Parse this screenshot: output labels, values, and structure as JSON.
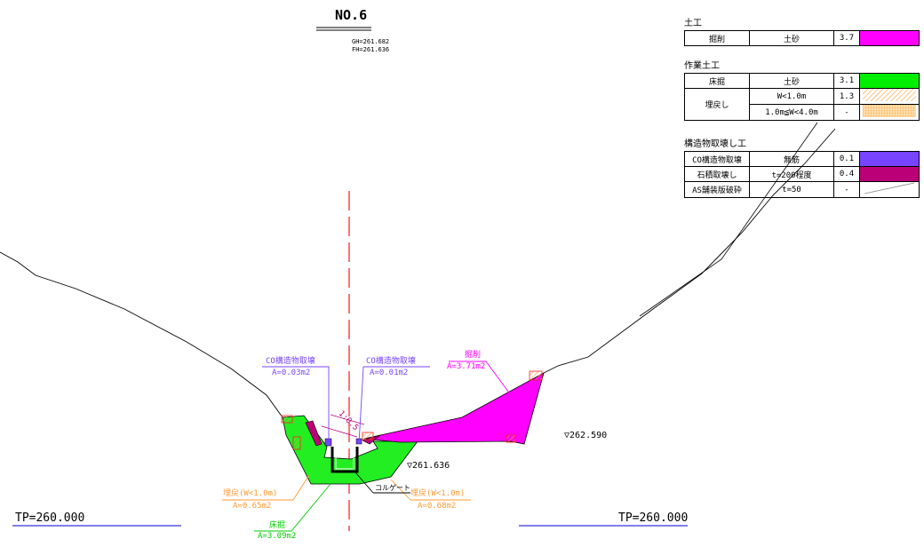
{
  "drawing": {
    "section_no": "NO.6",
    "gh": "GH=261.682",
    "fh": "FH=261.636"
  },
  "legend": {
    "earthwork": {
      "title": "土工",
      "rows": [
        {
          "work": "掘削",
          "material": "土砂",
          "value": "3.7",
          "color": "#ff00ff"
        }
      ]
    },
    "work_earthwork": {
      "title": "作業土工",
      "rows": [
        {
          "work": "床掘",
          "material": "土砂",
          "value": "3.1",
          "color": "#00ee00"
        },
        {
          "work": "埋戻し",
          "material": "W<1.0m",
          "value": "1.3",
          "color": "#ff9933"
        },
        {
          "work": "",
          "material": "1.0m≦W<4.0m",
          "value": "-",
          "color": "#ff9933"
        }
      ]
    },
    "demolition": {
      "title": "構造物取壊し工",
      "rows": [
        {
          "work": "CO構造物取壊",
          "material": "無筋",
          "value": "0.1",
          "color": "#7744ff"
        },
        {
          "work": "石積取壊し",
          "material": "t=200程度",
          "value": "0.4",
          "color": "#bb0077"
        },
        {
          "work": "AS舗装版破砕",
          "material": "t=50",
          "value": "-",
          "color": "#ffffff"
        }
      ]
    }
  },
  "annotations": {
    "co_left": {
      "label": "CO構造物取壊",
      "area": "A=0.03m2"
    },
    "co_right": {
      "label": "CO構造物取壊",
      "area": "A=0.01m2"
    },
    "excavation": {
      "label": "掘削",
      "area": "A=3.71m2"
    },
    "backfill_left": {
      "label": "埋戻(W<1.0m)",
      "area": "A=0.65m2"
    },
    "backfill_right": {
      "label": "埋戻(W<1.0m)",
      "area": "A=0.68m2"
    },
    "trench": {
      "label": "床掘",
      "area": "A=3.09m2"
    },
    "corrugate": "コルゲート",
    "slope": "1:0.5",
    "elev_1": "▽262.590",
    "elev_2": "▽261.636",
    "tp_left": "TP=260.000",
    "tp_right": "TP=260.000"
  }
}
